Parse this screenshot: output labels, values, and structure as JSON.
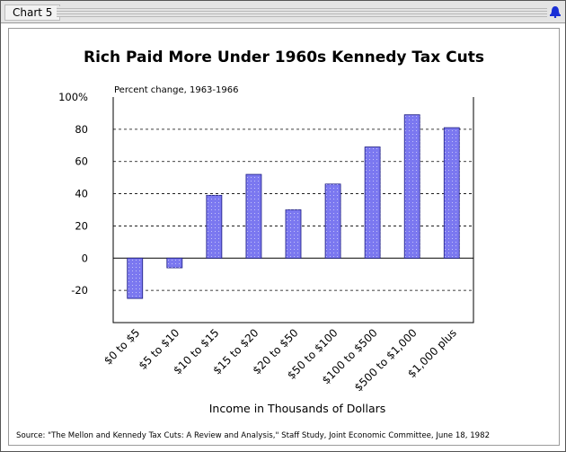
{
  "window": {
    "tab_label": "Chart 5"
  },
  "icons": {
    "corner": "bell-icon"
  },
  "colors": {
    "bar": "#7b78f0",
    "bar_stroke": "#1a1a80",
    "grid": "#000000"
  },
  "chart_data": {
    "type": "bar",
    "title": "Rich Paid More Under 1960s Kennedy Tax Cuts",
    "subtitle": "Percent change, 1963-1966",
    "xlabel": "Income in Thousands of Dollars",
    "ylabel": "",
    "ylim": [
      -40,
      100
    ],
    "yticks": [
      100,
      80,
      60,
      40,
      20,
      0,
      -20
    ],
    "ytick_labels": [
      "100%",
      "80",
      "60",
      "40",
      "20",
      "0",
      "-20"
    ],
    "grid": "dashed horizontal",
    "categories": [
      "$0 to $5",
      "$5 to $10",
      "$10 to $15",
      "$15 to $20",
      "$20 to $50",
      "$50 to $100",
      "$100 to $500",
      "$500 to $1,000",
      "$1,000 plus"
    ],
    "values": [
      -25,
      -6,
      39,
      52,
      30,
      46,
      69,
      89,
      81
    ],
    "source": "Source: \"The Mellon and Kennedy Tax Cuts: A Review and Analysis,\" Staff Study, Joint Economic Committee,  June 18, 1982"
  }
}
